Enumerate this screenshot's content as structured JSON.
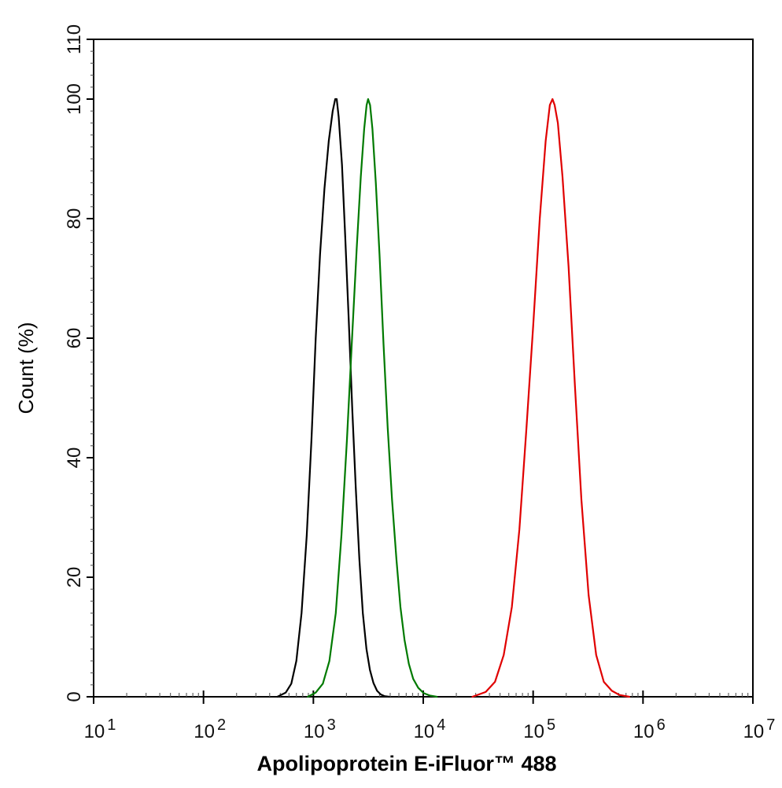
{
  "chart_data": {
    "type": "line",
    "xlabel": "Apolipoprotein E-iFluor™ 488",
    "ylabel": "Count  (%)",
    "x_scale": "log",
    "xlim": [
      10,
      10000000
    ],
    "ylim": [
      0,
      110
    ],
    "grid": false,
    "legend": "none",
    "x_ticks": [
      {
        "base": "10",
        "exp": "1",
        "value": 10
      },
      {
        "base": "10",
        "exp": "2",
        "value": 100
      },
      {
        "base": "10",
        "exp": "3",
        "value": 1000
      },
      {
        "base": "10",
        "exp": "4",
        "value": 10000
      },
      {
        "base": "10",
        "exp": "5",
        "value": 100000
      },
      {
        "base": "10",
        "exp": "6",
        "value": 1000000
      },
      {
        "base": "10",
        "exp": "7",
        "value": 10000000
      }
    ],
    "y_ticks": [
      "0",
      "20",
      "40",
      "60",
      "80",
      "100",
      "110"
    ],
    "series": [
      {
        "color": "#000000",
        "x": [
          470,
          560,
          630,
          700,
          780,
          870,
          960,
          1050,
          1150,
          1260,
          1380,
          1500,
          1580,
          1630,
          1700,
          1820,
          1950,
          2100,
          2260,
          2430,
          2620,
          2820,
          3040,
          3270,
          3520,
          3800,
          4100,
          4450,
          4900
        ],
        "y": [
          0,
          0.7,
          2.2,
          6,
          14,
          27,
          43,
          60,
          74,
          85,
          93,
          98,
          100,
          100,
          97,
          89,
          77,
          63,
          48,
          35,
          23,
          14,
          8,
          4.5,
          2.3,
          1,
          0.4,
          0.1,
          0
        ]
      },
      {
        "color": "#007a00",
        "x": [
          890,
          1050,
          1220,
          1400,
          1600,
          1800,
          2020,
          2250,
          2480,
          2700,
          2900,
          3050,
          3150,
          3280,
          3450,
          3700,
          4000,
          4350,
          4750,
          5200,
          5700,
          6200,
          6750,
          7400,
          8100,
          9000,
          10100,
          11500,
          13300
        ],
        "y": [
          0,
          0.7,
          2.2,
          6,
          14,
          27,
          43,
          60,
          75,
          87,
          95,
          99,
          100,
          99,
          95,
          86,
          74,
          59,
          45,
          33,
          23,
          15,
          9.5,
          5.5,
          3,
          1.5,
          0.6,
          0.2,
          0
        ]
      },
      {
        "color": "#e00000",
        "x": [
          28000,
          37000,
          45000,
          54000,
          64000,
          75000,
          87000,
          100000,
          115000,
          130000,
          142000,
          150000,
          157000,
          168000,
          185000,
          210000,
          240000,
          275000,
          320000,
          375000,
          440000,
          520000,
          610000,
          750000
        ],
        "y": [
          0,
          0.8,
          2.5,
          7,
          15,
          28,
          45,
          62,
          80,
          93,
          99,
          100,
          99,
          96,
          87,
          72,
          52,
          33,
          17,
          7,
          2.5,
          1,
          0.3,
          0
        ]
      }
    ]
  }
}
